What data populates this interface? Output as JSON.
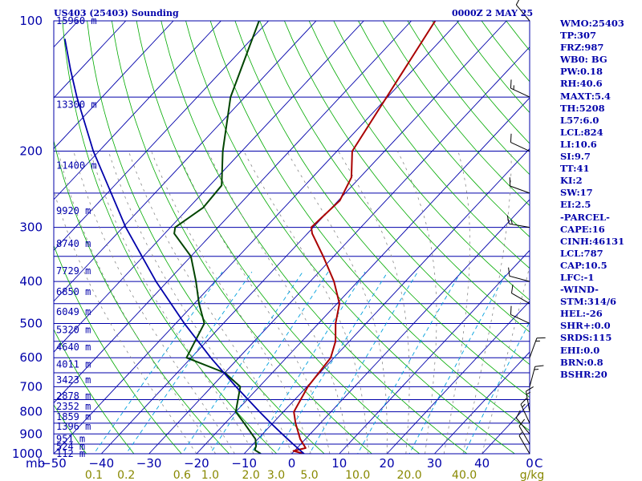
{
  "header": {
    "station": "US403 (25403) Sounding",
    "time": "0000Z  2 MAY 25"
  },
  "indices": [
    "WMO:25403",
    "TP:307",
    "FRZ:987",
    "WB0: BG",
    "PW:0.18",
    "RH:40.6",
    "MAXT:5.4",
    "TH:5208",
    "L57:6.0",
    "LCL:824",
    "LI:10.6",
    "SI:9.7",
    "TT:41",
    "KI:2",
    "SW:17",
    "EI:2.5",
    "-PARCEL-",
    "CAPE:16",
    "CINH:46131",
    "LCL:787",
    "CAP:10.5",
    "LFC:-1",
    "-WIND-",
    "STM:314/6",
    "HEL:-26",
    "SHR+:0.0",
    "SRDS:115",
    "EHI:0.0",
    "BRN:0.8",
    "BSHR:20"
  ],
  "colors": {
    "isobar": "#0000aa",
    "temperature": "#aa0000",
    "dewpoint": "#004400",
    "parcel": "#0000aa",
    "dry_adiabat": "#00aa00",
    "moist_adiabat": "#888888",
    "mixing_ratio": "#00a0dd",
    "isotherm": "#0000aa",
    "axis_label": "#0000aa",
    "mixing_label": "#888800"
  },
  "chart_data": {
    "type": "line",
    "title": "US403 (25403) Sounding",
    "x_unit_label": "C",
    "y_unit_label": "mb",
    "x_range": [
      -50,
      50
    ],
    "y_range": [
      1000,
      100
    ],
    "y_scale": "log",
    "pressure_ticks": [
      "1000",
      "900",
      "800",
      "700",
      "600",
      "500",
      "400",
      "300",
      "200",
      "100"
    ],
    "temperature_ticks": [
      "−50",
      "−40",
      "−30",
      "−20",
      "−10",
      "0",
      "10",
      "20",
      "30",
      "40",
      "0"
    ],
    "mixing_ratio_ticks": [
      "0.1",
      "0.2",
      "0.6",
      "1.0",
      "2.0",
      "3.0",
      "5.0",
      "10.0",
      "20.0",
      "40.0"
    ],
    "mixing_ratio_unit": "g/kg",
    "height_labels": [
      {
        "p": 1000,
        "text": "112 m"
      },
      {
        "p": 962,
        "text": "524 m"
      },
      {
        "p": 925,
        "text": "951 m"
      },
      {
        "p": 865,
        "text": "1396 m"
      },
      {
        "p": 822,
        "text": "1859 m"
      },
      {
        "p": 778,
        "text": "2352 m"
      },
      {
        "p": 735,
        "text": "2878 m"
      },
      {
        "p": 676,
        "text": "3423 m"
      },
      {
        "p": 621,
        "text": "4011 m"
      },
      {
        "p": 567,
        "text": "4640 m"
      },
      {
        "p": 518,
        "text": "5320 m"
      },
      {
        "p": 470,
        "text": "6049 m"
      },
      {
        "p": 423,
        "text": "6850 m"
      },
      {
        "p": 378,
        "text": "7729 m"
      },
      {
        "p": 327,
        "text": "8740 m"
      },
      {
        "p": 275,
        "text": "9920 m"
      },
      {
        "p": 216,
        "text": "11400 m"
      },
      {
        "p": 156,
        "text": "13300 m"
      },
      {
        "p": 100,
        "text": "15960 m"
      }
    ],
    "series": [
      {
        "key": "temperature",
        "points": [
          [
            1000,
            2.6
          ],
          [
            985,
            -0.2
          ],
          [
            970,
            1.8
          ],
          [
            925,
            -1.1
          ],
          [
            850,
            -5.2
          ],
          [
            800,
            -7.8
          ],
          [
            700,
            -9.8
          ],
          [
            600,
            -10.7
          ],
          [
            550,
            -12.9
          ],
          [
            500,
            -16.4
          ],
          [
            450,
            -19.5
          ],
          [
            400,
            -25.0
          ],
          [
            350,
            -32.2
          ],
          [
            310,
            -39.0
          ],
          [
            300,
            -40.4
          ],
          [
            260,
            -39.7
          ],
          [
            230,
            -41.8
          ],
          [
            200,
            -46.8
          ],
          [
            100,
            -55.0
          ]
        ]
      },
      {
        "key": "dewpoint",
        "points": [
          [
            1000,
            -6.5
          ],
          [
            980,
            -8.5
          ],
          [
            960,
            -9.0
          ],
          [
            925,
            -10.5
          ],
          [
            850,
            -16.0
          ],
          [
            800,
            -20.0
          ],
          [
            700,
            -24.0
          ],
          [
            650,
            -30.0
          ],
          [
            600,
            -41.0
          ],
          [
            500,
            -44.0
          ],
          [
            450,
            -49.0
          ],
          [
            400,
            -54.0
          ],
          [
            350,
            -60.0
          ],
          [
            310,
            -68.0
          ],
          [
            300,
            -69.0
          ],
          [
            270,
            -67.0
          ],
          [
            240,
            -67.5
          ],
          [
            200,
            -74.0
          ],
          [
            150,
            -83.0
          ],
          [
            100,
            -92.0
          ]
        ]
      },
      {
        "key": "parcel",
        "points": [
          [
            1000,
            2.6
          ],
          [
            950,
            -1.6
          ],
          [
            900,
            -5.9
          ],
          [
            850,
            -10.4
          ],
          [
            800,
            -15.0
          ],
          [
            700,
            -24.9
          ],
          [
            600,
            -35.9
          ],
          [
            500,
            -48.2
          ],
          [
            400,
            -62.4
          ],
          [
            300,
            -79.4
          ],
          [
            200,
            -101.2
          ],
          [
            150,
            -115.3
          ],
          [
            130,
            -121.9
          ],
          [
            110,
            -129.3
          ]
        ]
      }
    ],
    "wind_barbs": [
      {
        "p": 1000,
        "dir": 330,
        "kt": 5
      },
      {
        "p": 950,
        "dir": 330,
        "kt": 10
      },
      {
        "p": 900,
        "dir": 320,
        "kt": 10
      },
      {
        "p": 850,
        "dir": 335,
        "kt": 15
      },
      {
        "p": 800,
        "dir": 350,
        "kt": 15
      },
      {
        "p": 700,
        "dir": 15,
        "kt": 15
      },
      {
        "p": 600,
        "dir": 20,
        "kt": 15
      },
      {
        "p": 500,
        "dir": 295,
        "kt": 10
      },
      {
        "p": 450,
        "dir": 300,
        "kt": 10
      },
      {
        "p": 400,
        "dir": 285,
        "kt": 10
      },
      {
        "p": 300,
        "dir": 280,
        "kt": 15
      },
      {
        "p": 250,
        "dir": 290,
        "kt": 10
      },
      {
        "p": 200,
        "dir": 295,
        "kt": 10
      },
      {
        "p": 150,
        "dir": 295,
        "kt": 15
      },
      {
        "p": 100,
        "dir": 320,
        "kt": 10
      }
    ]
  }
}
